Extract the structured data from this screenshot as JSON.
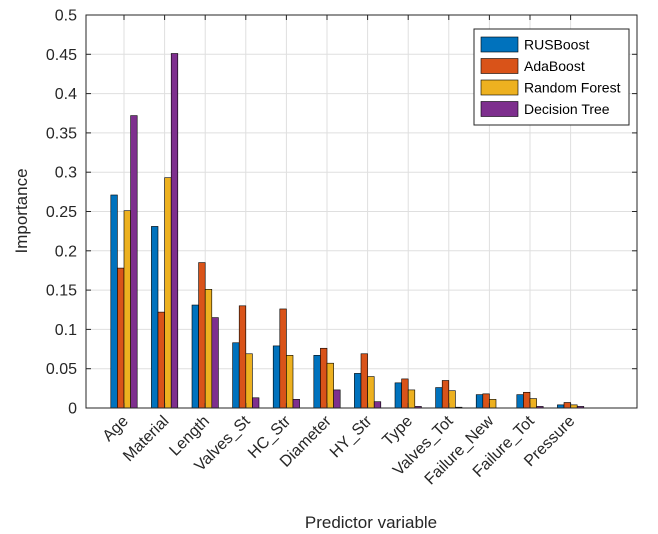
{
  "chart_data": {
    "type": "bar",
    "xlabel": "Predictor variable",
    "ylabel": "Importance",
    "ylim": [
      0,
      0.5
    ],
    "yticks": [
      "0",
      "0.05",
      "0.1",
      "0.15",
      "0.2",
      "0.25",
      "0.3",
      "0.35",
      "0.4",
      "0.45",
      "0.5"
    ],
    "grid": true,
    "legend_position": "top-right",
    "categories": [
      "Age",
      "Material",
      "Length",
      "Valves_St",
      "HC_Str",
      "Diameter",
      "HY_Str",
      "Type",
      "Valves_Tot",
      "Failure_New",
      "Failure_Tot",
      "Pressure"
    ],
    "series": [
      {
        "name": "RUSBoost",
        "color": "#0072BD",
        "values": [
          0.271,
          0.231,
          0.131,
          0.083,
          0.079,
          0.067,
          0.044,
          0.032,
          0.026,
          0.017,
          0.017,
          0.004
        ]
      },
      {
        "name": "AdaBoost",
        "color": "#D95319",
        "values": [
          0.178,
          0.122,
          0.185,
          0.13,
          0.126,
          0.076,
          0.069,
          0.037,
          0.035,
          0.018,
          0.02,
          0.007
        ]
      },
      {
        "name": "Random Forest",
        "color": "#EDB120",
        "values": [
          0.251,
          0.293,
          0.151,
          0.069,
          0.067,
          0.057,
          0.04,
          0.023,
          0.022,
          0.011,
          0.012,
          0.004
        ]
      },
      {
        "name": "Decision Tree",
        "color": "#7E2F8E",
        "values": [
          0.372,
          0.451,
          0.115,
          0.013,
          0.011,
          0.023,
          0.008,
          0.002,
          0.001,
          0.0,
          0.002,
          0.002
        ]
      }
    ]
  }
}
